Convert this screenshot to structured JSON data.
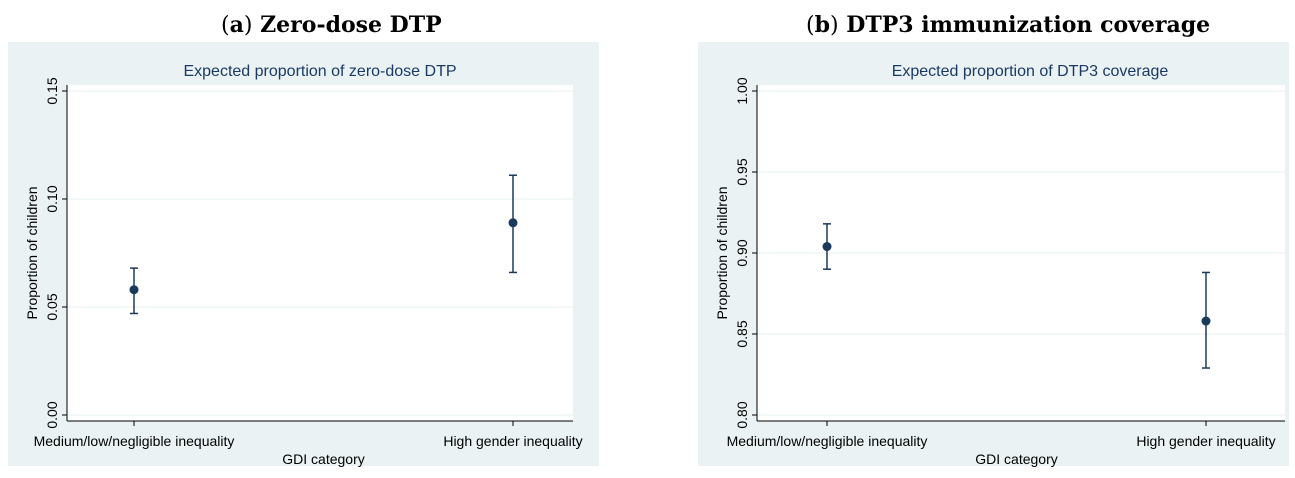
{
  "panels": [
    {
      "letter": "a",
      "heading": "Zero-dose DTP",
      "chart_data": {
        "type": "scatter",
        "title": "Expected proportion of zero-dose DTP",
        "xlabel": "GDI category",
        "ylabel": "Proportion of children",
        "categories": [
          "Medium/low/negligible inequality",
          "High gender inequality"
        ],
        "yticks": [
          "0.00",
          "0.05",
          "0.10",
          "0.15"
        ],
        "ylim": [
          0,
          0.15
        ],
        "grid": true,
        "series": [
          {
            "estimates": [
              0.058,
              0.089
            ],
            "lower": [
              0.047,
              0.066
            ],
            "upper": [
              0.068,
              0.111
            ]
          }
        ]
      }
    },
    {
      "letter": "b",
      "heading": "DTP3 immunization coverage",
      "chart_data": {
        "type": "scatter",
        "title": "Expected proportion of DTP3 coverage",
        "xlabel": "GDI category",
        "ylabel": "Proportion of children",
        "categories": [
          "Medium/low/negligible inequality",
          "High gender inequality"
        ],
        "yticks": [
          "0.80",
          "0.85",
          "0.90",
          "0.95",
          "1.00"
        ],
        "ylim": [
          0.8,
          1.0
        ],
        "grid": true,
        "series": [
          {
            "estimates": [
              0.904,
              0.858
            ],
            "lower": [
              0.89,
              0.829
            ],
            "upper": [
              0.918,
              0.888
            ]
          }
        ]
      }
    }
  ],
  "colors": {
    "background": "#eaf2f3",
    "plot": "#ffffff",
    "marker": "#1a3a5c",
    "title": "#1a3a66",
    "grid": "#eaf2f3"
  }
}
